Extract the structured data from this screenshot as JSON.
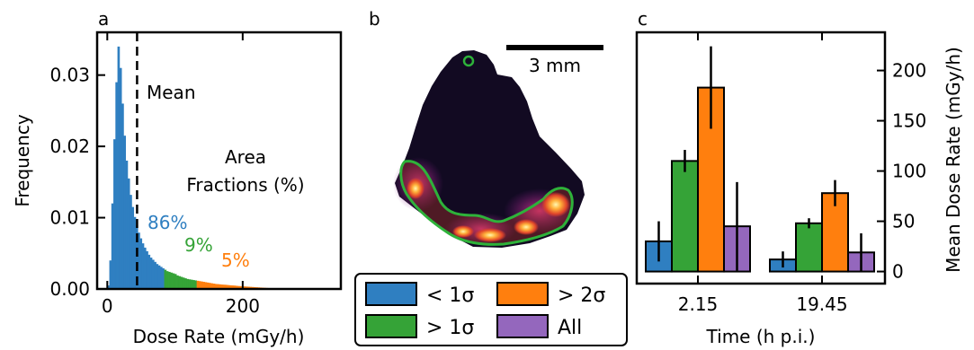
{
  "panels": {
    "a": "a",
    "b": "b",
    "c": "c"
  },
  "colors": {
    "blue": "#2f7fc1",
    "green": "#35a337",
    "orange": "#ff7f0e",
    "purple": "#9467bd",
    "axis": "#000000"
  },
  "chart_data": [
    {
      "type": "bar",
      "panel": "a",
      "xlabel": "Dose Rate (mGy/h)",
      "ylabel": "Frequency",
      "xlim": [
        -15,
        345
      ],
      "ylim": [
        0,
        0.036
      ],
      "xticks": [
        0,
        200
      ],
      "xtick_labels": [
        "0",
        "200"
      ],
      "yticks": [
        0,
        0.01,
        0.02,
        0.03
      ],
      "ytick_labels": [
        "0.00",
        "0.01",
        "0.02",
        "0.03"
      ],
      "bin_width": 3,
      "bin_start": 0,
      "values": [
        0.0005,
        0.004,
        0.012,
        0.021,
        0.029,
        0.034,
        0.031,
        0.026,
        0.0215,
        0.018,
        0.0155,
        0.0132,
        0.0115,
        0.0101,
        0.0089,
        0.0079,
        0.0071,
        0.0064,
        0.0058,
        0.0053,
        0.0048,
        0.0044,
        0.0041,
        0.0038,
        0.0035,
        0.0033,
        0.0031,
        0.0029,
        0.0027,
        0.0025,
        0.0024,
        0.0023,
        0.0022,
        0.0021,
        0.0019,
        0.0018,
        0.0017,
        0.0016,
        0.0015,
        0.0014,
        0.00135,
        0.0013,
        0.00125,
        0.0012,
        0.00115,
        0.0011,
        0.00105,
        0.001,
        0.00095,
        0.0009,
        0.00085,
        0.0008,
        0.00075,
        0.0007,
        0.00068,
        0.00065,
        0.00062,
        0.0006,
        0.00058,
        0.00055,
        0.00052,
        0.0005,
        0.00048,
        0.00045,
        0.00042,
        0.0004,
        0.00038,
        0.00036,
        0.00034,
        0.00032,
        0.0003,
        0.00028,
        0.00026,
        0.00024,
        0.00022,
        0.0002,
        0.00018,
        0.00016,
        0.00014,
        0.00012
      ],
      "thresholds": [
        85,
        133
      ],
      "mean": 44,
      "mean_label": "Mean",
      "annotation_title": [
        "Area",
        "Fractions (%)"
      ],
      "fractions": [
        {
          "label": "86%",
          "color": "#2f7fc1"
        },
        {
          "label": "9%",
          "color": "#35a337"
        },
        {
          "label": "5%",
          "color": "#ff7f0e"
        }
      ]
    },
    {
      "type": "bar",
      "panel": "c",
      "categories": [
        "2.15",
        "19.45"
      ],
      "xlabel": "Time (h p.i.)",
      "ylabel": "Mean Dose Rate (mGy/h)",
      "ylim": [
        -12,
        238
      ],
      "yticks": [
        0,
        50,
        100,
        150,
        200
      ],
      "ytick_labels": [
        "0",
        "50",
        "100",
        "150",
        "200"
      ],
      "series": [
        {
          "name": "< 1σ",
          "color": "#2f7fc1",
          "values": [
            30,
            12
          ],
          "errors": [
            20,
            8
          ]
        },
        {
          "name": "> 1σ",
          "color": "#35a337",
          "values": [
            110,
            48
          ],
          "errors": [
            11,
            5
          ]
        },
        {
          "name": "> 2σ",
          "color": "#ff7f0e",
          "values": [
            183,
            78
          ],
          "errors": [
            41,
            13
          ]
        },
        {
          "name": "All",
          "color": "#9467bd",
          "values": [
            45,
            19
          ],
          "errors": [
            44,
            19
          ]
        }
      ]
    }
  ],
  "image_panel": {
    "scalebar_label": "3 mm"
  }
}
